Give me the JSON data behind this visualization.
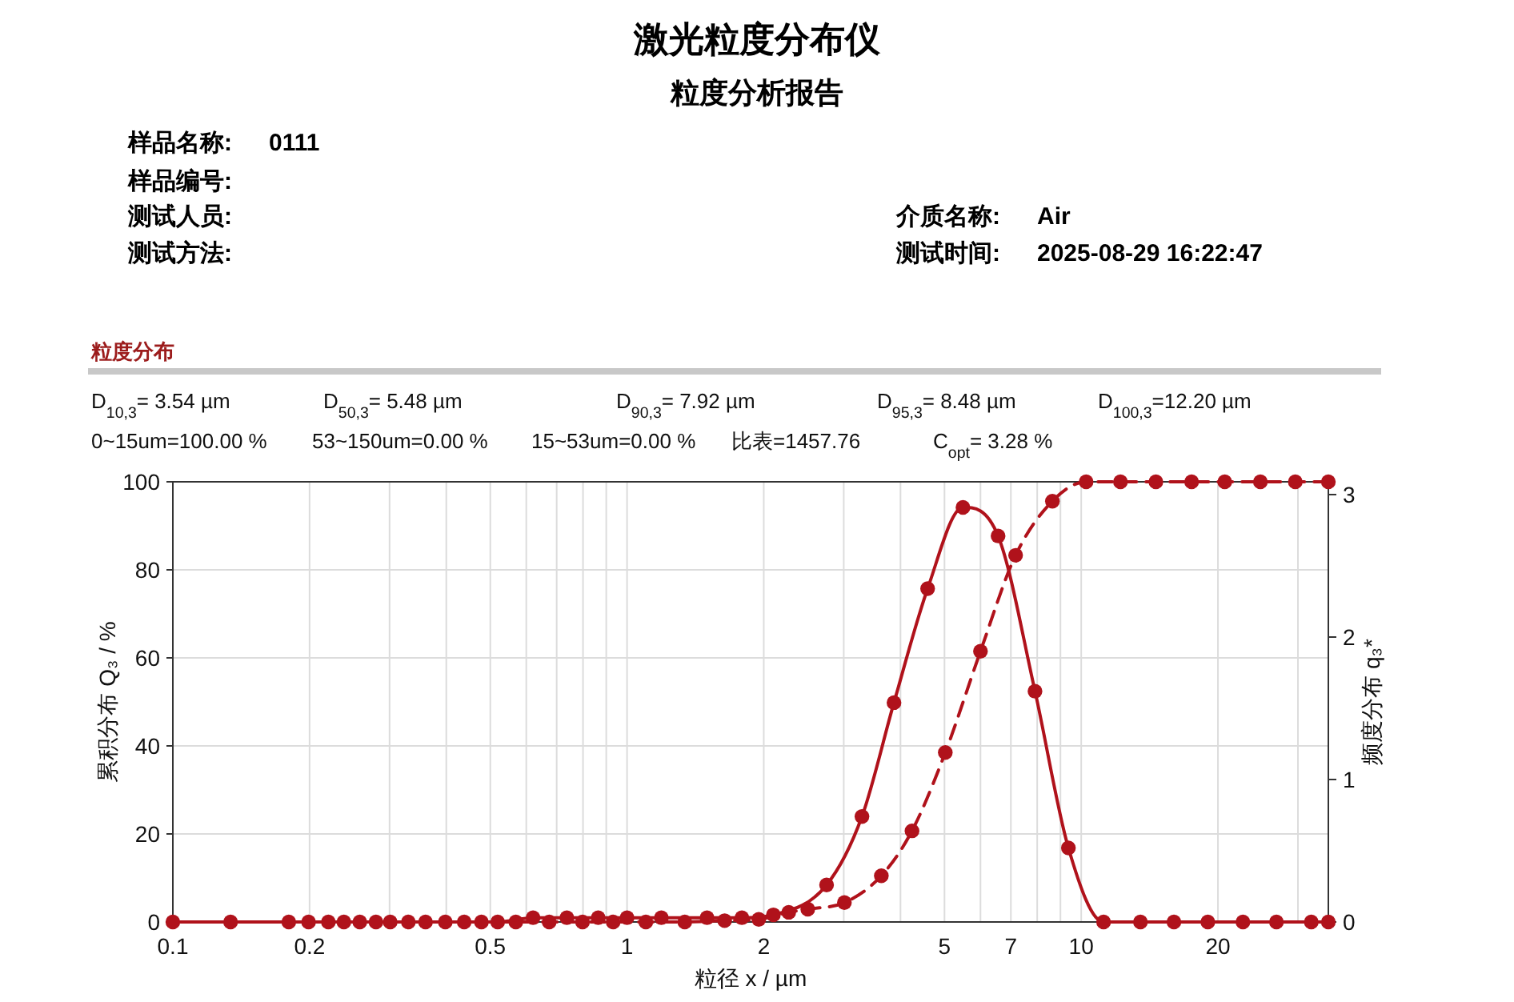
{
  "chart_data": {
    "type": "line",
    "title": "激光粒度分布仪",
    "subtitle": "粒度分析报告",
    "xlabel": "粒径 x / µm",
    "ylabel": "累积分布 Q₃ / %",
    "y2label": "频度分布 q₃*",
    "annotations": [
      "样品名称:",
      "0111",
      "样品编号:",
      "测试人员:",
      "测试方法:",
      "介质名称:",
      "Air",
      "测试时间:",
      "2025-08-29 16:22:47",
      "粒度分布",
      "D$_{10,3}$= 3.54 µm",
      "D$_{50,3}$= 5.48 µm",
      "D$_{90,3}$= 7.92 µm",
      "D$_{95,3}$= 8.48 µm",
      "D$_{100,3}$=12.20 µm",
      "0~15um=100.00 %",
      "53~150um=0.00 %",
      "15~53um=0.00 %",
      "比表=1457.76",
      "C$_{opt}$= 3.28 %"
    ],
    "log": "x",
    "grid": true,
    "marker": "circle",
    "xlim": [
      0.1,
      35
    ],
    "ylim": [
      0,
      100
    ],
    "y2lim": [
      0,
      3.09
    ],
    "xticks": [
      0.1,
      0.2,
      {
        "value": 0.3,
        "label": null
      },
      {
        "value": 0.4,
        "label": null
      },
      0.5,
      {
        "value": 0.6,
        "label": null
      },
      {
        "value": 0.7,
        "label": null
      },
      {
        "value": 0.8,
        "label": null
      },
      {
        "value": 0.9,
        "label": null
      },
      1,
      2,
      {
        "value": 3,
        "label": null
      },
      {
        "value": 4,
        "label": null
      },
      5,
      {
        "value": 6,
        "label": null
      },
      7,
      {
        "value": 8,
        "label": null
      },
      {
        "value": 9,
        "label": null
      },
      10,
      20,
      {
        "value": 30,
        "label": null
      }
    ],
    "yticks": [
      0,
      20,
      40,
      60,
      80,
      100
    ],
    "y2ticks": [
      0,
      1,
      2,
      3
    ],
    "series": [
      {
        "color": "#b0121b",
        "line_style": "dashed",
        "x": [
          0.134,
          0.199,
          0.238,
          0.28,
          0.33,
          0.398,
          0.478,
          0.569,
          0.674,
          0.798,
          0.932,
          1.1,
          1.34,
          1.64,
          1.95,
          2.27,
          2.5,
          3.01,
          3.63,
          4.24,
          5.02,
          6.0,
          7.17,
          8.64,
          10.25,
          12.2,
          14.6,
          17.5,
          20.7,
          24.8,
          29.6,
          35
        ],
        "values": [
          0,
          0,
          0,
          0,
          0,
          0,
          0,
          0,
          0,
          0,
          0,
          0,
          0,
          0.3,
          0.6,
          2.2,
          2.9,
          4.4,
          10.5,
          20.7,
          38.5,
          61.5,
          83.3,
          95.6,
          100,
          100,
          100,
          100,
          100,
          100,
          100,
          100
        ]
      },
      {
        "color": "#b0121b",
        "line_style": "solid",
        "axis": "y2",
        "x": [
          0.1,
          0.18,
          0.22,
          0.258,
          0.301,
          0.36,
          0.438,
          0.519,
          0.621,
          0.737,
          0.864,
          1.0,
          1.19,
          1.5,
          1.79,
          2.1,
          2.75,
          3.29,
          3.87,
          4.59,
          5.49,
          6.56,
          7.91,
          9.37,
          11.2,
          13.5,
          16.0,
          19.0,
          22.7,
          26.9,
          32.1,
          35
        ],
        "values": [
          0,
          0,
          0,
          0,
          0,
          0,
          0,
          0,
          0.03,
          0.03,
          0.03,
          0.03,
          0.03,
          0.03,
          0.03,
          0.05,
          0.26,
          0.74,
          1.54,
          2.34,
          2.91,
          2.71,
          1.62,
          0.52,
          0,
          0,
          0,
          0,
          0,
          0,
          0,
          0
        ]
      }
    ]
  }
}
